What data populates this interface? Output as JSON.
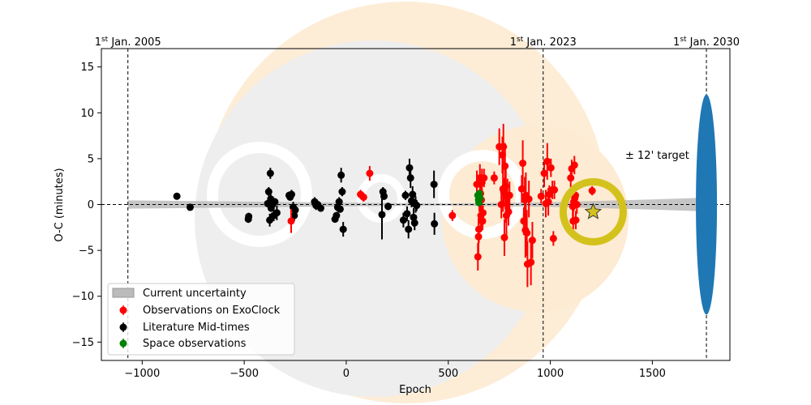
{
  "chart_data": {
    "type": "scatter",
    "xlabel": "Epoch",
    "ylabel": "O-C (minutes)",
    "xlim": [
      -1200,
      1880
    ],
    "ylim": [
      -17,
      17
    ],
    "xticks": [
      -1000,
      -500,
      0,
      500,
      1000,
      1500
    ],
    "xtick_labels": [
      "−1000",
      "−500",
      "0",
      "500",
      "1000",
      "1500"
    ],
    "yticks": [
      -15,
      -10,
      -5,
      0,
      5,
      10,
      15
    ],
    "ytick_labels": [
      "−15",
      "−10",
      "−5",
      "0",
      "5",
      "10",
      "15"
    ],
    "date_lines": [
      {
        "epoch": -1070,
        "sup": "st",
        "prefix": "1",
        "label": " Jan. 2005"
      },
      {
        "epoch": 965,
        "sup": "st",
        "prefix": "1",
        "label": " Jan. 2023"
      },
      {
        "epoch": 1765,
        "sup": "st",
        "prefix": "1",
        "label": " Jan. 2030"
      }
    ],
    "target_label": "± 12' target",
    "target_ellipse": {
      "epoch": 1765,
      "half_height": 12,
      "color": "#1f77b4"
    },
    "prediction_marker": {
      "epoch": 1210,
      "oc": -0.8,
      "color": "#d4c21c"
    },
    "legend": {
      "placement": "lower-left",
      "entries": [
        {
          "label": "Current uncertainty",
          "kind": "band",
          "color": "#bbbbbb"
        },
        {
          "label": "Observations on ExoClock",
          "kind": "point",
          "color": "#ff0000"
        },
        {
          "label": "Literature Mid-times",
          "kind": "point",
          "color": "#000000"
        },
        {
          "label": "Space observations",
          "kind": "point",
          "color": "#008000"
        }
      ]
    },
    "series": [
      {
        "name": "Literature Mid-times",
        "color": "#000000",
        "points": [
          [
            -830,
            0.9,
            0.2
          ],
          [
            -765,
            -0.3,
            0.3
          ],
          [
            -480,
            -1.6,
            0.4
          ],
          [
            -478,
            -1.3,
            0.4
          ],
          [
            -385,
            0.1,
            0.4
          ],
          [
            -380,
            1.4,
            0.5
          ],
          [
            -375,
            -1.7,
            0.7
          ],
          [
            -372,
            3.4,
            0.6
          ],
          [
            -370,
            0.6,
            0.5
          ],
          [
            -368,
            -0.4,
            0.4
          ],
          [
            -362,
            0.0,
            0.5
          ],
          [
            -355,
            -1.2,
            0.6
          ],
          [
            -350,
            0.3,
            0.4
          ],
          [
            -340,
            -0.9,
            0.8
          ],
          [
            -280,
            1.0,
            0.4
          ],
          [
            -275,
            0.8,
            0.3
          ],
          [
            -268,
            1.1,
            0.5
          ],
          [
            -260,
            -0.3,
            0.6
          ],
          [
            -255,
            -1.2,
            0.6
          ],
          [
            -250,
            -0.6,
            0.4
          ],
          [
            -155,
            0.3,
            0.5
          ],
          [
            -148,
            -0.1,
            0.5
          ],
          [
            -140,
            0.0,
            0.4
          ],
          [
            -125,
            -0.4,
            0.4
          ],
          [
            -55,
            -1.6,
            0.3
          ],
          [
            -48,
            -1.2,
            0.3
          ],
          [
            -42,
            -0.3,
            0.5
          ],
          [
            -35,
            0.3,
            0.5
          ],
          [
            -30,
            -0.5,
            0.4
          ],
          [
            -25,
            3.2,
            0.8
          ],
          [
            -20,
            1.4,
            0.5
          ],
          [
            -15,
            -2.7,
            0.8
          ],
          [
            175,
            -1.1,
            2.7
          ],
          [
            180,
            1.4,
            0.5
          ],
          [
            185,
            0.9,
            0.4
          ],
          [
            205,
            -0.2,
            0.4
          ],
          [
            280,
            -1.7,
            0.8
          ],
          [
            290,
            1.0,
            0.5
          ],
          [
            298,
            -1.0,
            0.8
          ],
          [
            305,
            -2.7,
            1.0
          ],
          [
            310,
            4.0,
            1.0
          ],
          [
            315,
            2.9,
            1.1
          ],
          [
            320,
            0.4,
            0.7
          ],
          [
            325,
            1.1,
            0.9
          ],
          [
            330,
            -1.4,
            1.0
          ],
          [
            335,
            -2.0,
            0.8
          ],
          [
            340,
            0.0,
            0.9
          ],
          [
            345,
            -0.1,
            0.6
          ],
          [
            430,
            2.2,
            1.5
          ],
          [
            432,
            -2.1,
            1.2
          ]
        ]
      },
      {
        "name": "Observations on ExoClock",
        "color": "#ff0000",
        "points": [
          [
            -270,
            -1.8,
            1.3
          ],
          [
            70,
            1.1,
            0.5
          ],
          [
            85,
            0.8,
            0.5
          ],
          [
            115,
            3.4,
            0.8
          ],
          [
            520,
            -1.2,
            0.6
          ],
          [
            640,
            2.2,
            1.5
          ],
          [
            645,
            -5.7,
            1.5
          ],
          [
            648,
            -3.5,
            2.0
          ],
          [
            650,
            -2.7,
            1.5
          ],
          [
            652,
            0.4,
            1.2
          ],
          [
            655,
            2.9,
            1.5
          ],
          [
            658,
            1.2,
            2.0
          ],
          [
            660,
            -1.2,
            1.5
          ],
          [
            662,
            0.5,
            2.5
          ],
          [
            665,
            2.4,
            1.5
          ],
          [
            668,
            -1.8,
            1.0
          ],
          [
            670,
            -0.9,
            0.8
          ],
          [
            675,
            2.9,
            1.0
          ],
          [
            725,
            2.9,
            0.7
          ],
          [
            750,
            6.3,
            2.0
          ],
          [
            760,
            0.0,
            1.5
          ],
          [
            765,
            5.4,
            2.0
          ],
          [
            768,
            1.7,
            2.5
          ],
          [
            770,
            6.3,
            2.5
          ],
          [
            772,
            1.4,
            1.5
          ],
          [
            775,
            -3.6,
            2.0
          ],
          [
            778,
            4.2,
            2.5
          ],
          [
            780,
            2.0,
            2.5
          ],
          [
            782,
            1.0,
            3.0
          ],
          [
            785,
            -1.2,
            2.5
          ],
          [
            790,
            0.8,
            2.0
          ],
          [
            795,
            -0.8,
            1.5
          ],
          [
            800,
            1.0,
            1.5
          ],
          [
            860,
            1.7,
            1.5
          ],
          [
            865,
            4.5,
            2.5
          ],
          [
            870,
            -1.8,
            1.5
          ],
          [
            875,
            0.5,
            2.5
          ],
          [
            878,
            -2.8,
            3.0
          ],
          [
            880,
            1.0,
            2.5
          ],
          [
            885,
            -3.1,
            2.5
          ],
          [
            888,
            -6.5,
            2.5
          ],
          [
            895,
            0.6,
            2.0
          ],
          [
            905,
            -6.3,
            2.5
          ],
          [
            912,
            -3.9,
            2.0
          ],
          [
            955,
            0.9,
            0.8
          ],
          [
            970,
            3.4,
            1.5
          ],
          [
            978,
            0.1,
            1.5
          ],
          [
            985,
            4.7,
            2.0
          ],
          [
            990,
            0.3,
            1.5
          ],
          [
            995,
            1.1,
            1.0
          ],
          [
            1003,
            4.0,
            1.0
          ],
          [
            1010,
            1.6,
            1.0
          ],
          [
            1015,
            -3.7,
            0.8
          ],
          [
            1020,
            1.6,
            1.0
          ],
          [
            1100,
            2.9,
            1.0
          ],
          [
            1105,
            3.9,
            1.0
          ],
          [
            1110,
            -0.2,
            1.5
          ],
          [
            1112,
            -1.8,
            1.5
          ],
          [
            1115,
            0.3,
            1.0
          ],
          [
            1118,
            4.3,
            1.0
          ],
          [
            1120,
            0.7,
            1.0
          ],
          [
            1123,
            1.0,
            1.0
          ],
          [
            1125,
            -1.7,
            1.0
          ],
          [
            1130,
            0.0,
            1.0
          ],
          [
            1205,
            1.5,
            0.5
          ]
        ]
      },
      {
        "name": "Space observations",
        "color": "#008000",
        "points": [
          [
            645,
            1.0,
            0.3
          ],
          [
            648,
            0.5,
            0.3
          ],
          [
            650,
            0.2,
            0.3
          ],
          [
            652,
            1.2,
            0.3
          ],
          [
            655,
            0.7,
            0.3
          ]
        ]
      }
    ],
    "uncertainty_band": {
      "epochs": [
        -1070,
        0,
        500,
        1000,
        1500,
        1765
      ],
      "half_width": [
        0.45,
        0.2,
        0.12,
        0.25,
        0.55,
        0.75
      ]
    }
  }
}
